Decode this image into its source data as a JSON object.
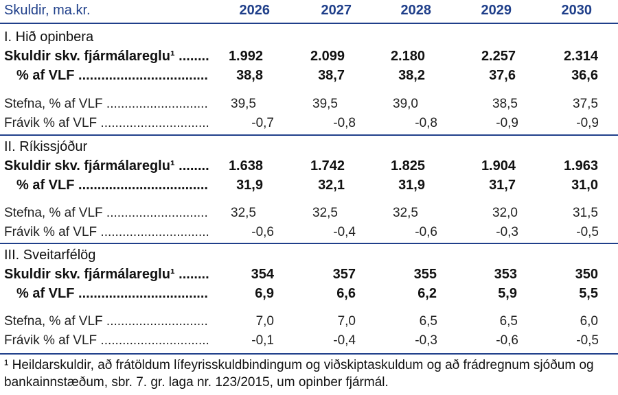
{
  "header": {
    "title": "Skuldir, ma.kr.",
    "years": [
      "2026",
      "2027",
      "2028",
      "2029",
      "2030"
    ]
  },
  "sections": [
    {
      "title": "I. Hið opinbera",
      "rows": [
        {
          "label": "Skuldir skv. fjármálareglu¹ ..........",
          "values": [
            "1.992",
            "2.099",
            "2.180",
            "2.257",
            "2.314"
          ]
        },
        {
          "label": "% af VLF ..........................................",
          "values": [
            "38,8",
            "38,7",
            "38,2",
            "37,6",
            "36,6"
          ]
        },
        {
          "label": "Stefna, % af VLF ....................................",
          "values": [
            "39,5",
            "39,5",
            "39,0",
            "38,5",
            "37,5"
          ]
        },
        {
          "label": "Frávik % af VLF ....................................",
          "values": [
            "-0,7",
            "-0,8",
            "-0,8",
            "-0,9",
            "-0,9"
          ]
        }
      ]
    },
    {
      "title": "II. Ríkissjóður",
      "rows": [
        {
          "label": "Skuldir skv. fjármálareglu¹ ..........",
          "values": [
            "1.638",
            "1.742",
            "1.825",
            "1.904",
            "1.963"
          ]
        },
        {
          "label": "% af VLF ..........................................",
          "values": [
            "31,9",
            "32,1",
            "31,9",
            "31,7",
            "31,0"
          ]
        },
        {
          "label": "Stefna, % af VLF ....................................",
          "values": [
            "32,5",
            "32,5",
            "32,5",
            "32,0",
            "31,5"
          ]
        },
        {
          "label": "Frávik % af VLF ....................................",
          "values": [
            "-0,6",
            "-0,4",
            "-0,6",
            "-0,3",
            "-0,5"
          ]
        }
      ]
    },
    {
      "title": "III. Sveitarfélög",
      "rows": [
        {
          "label": "Skuldir skv. fjármálareglu¹ ..........",
          "values": [
            "354",
            "357",
            "355",
            "353",
            "350"
          ]
        },
        {
          "label": "% af VLF ..........................................",
          "values": [
            "6,9",
            "6,6",
            "6,2",
            "5,9",
            "5,5"
          ]
        },
        {
          "label": "Stefna, % af VLF ....................................",
          "values": [
            "7,0",
            "7,0",
            "6,5",
            "6,5",
            "6,0"
          ]
        },
        {
          "label": "Frávik % af VLF ....................................",
          "values": [
            "-0,1",
            "-0,4",
            "-0,3",
            "-0,6",
            "-0,5"
          ]
        }
      ]
    }
  ],
  "footnote": "¹ Heildarskuldir, að frátöldum lífeyrisskuldbindingum og viðskiptaskuldum og að frádregnum sjóðum og bankainnstæðum, sbr. 7. gr. laga nr. 123/2015, um opinber fjármál."
}
